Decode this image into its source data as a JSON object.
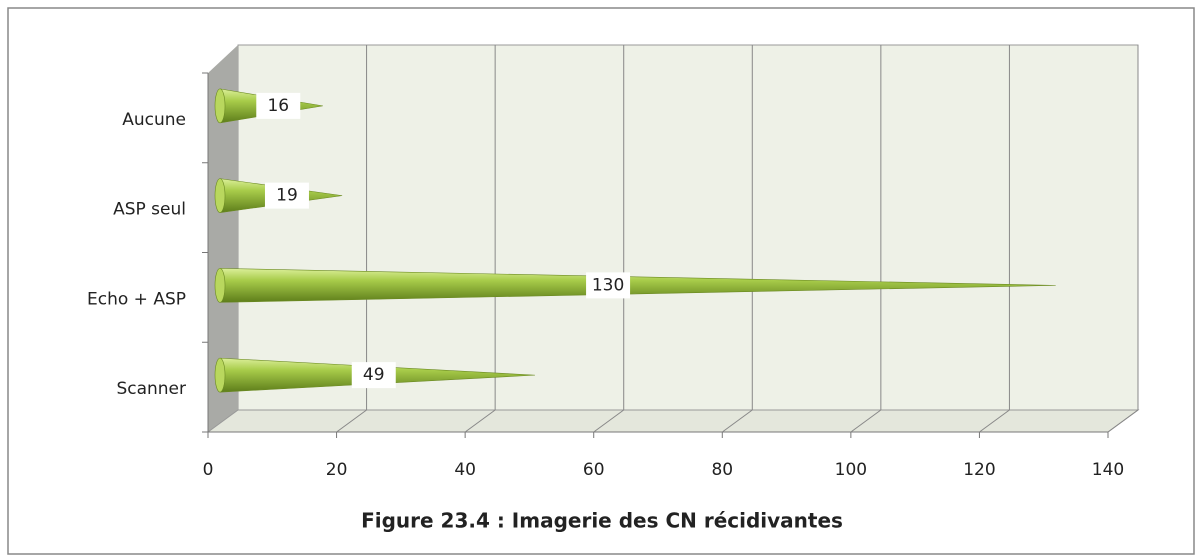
{
  "chart_data": {
    "type": "cone-bar",
    "title": "Figure 23.4 : Imagerie des CN récidivantes",
    "categories": [
      "Aucune",
      "ASP seul",
      "Echo + ASP",
      "Scanner"
    ],
    "values": [
      16,
      19,
      130,
      49
    ],
    "color": "#9bc13c",
    "xlim": [
      0,
      140
    ],
    "xticks": [
      0,
      20,
      40,
      60,
      80,
      100,
      120,
      140
    ],
    "grid": true
  }
}
